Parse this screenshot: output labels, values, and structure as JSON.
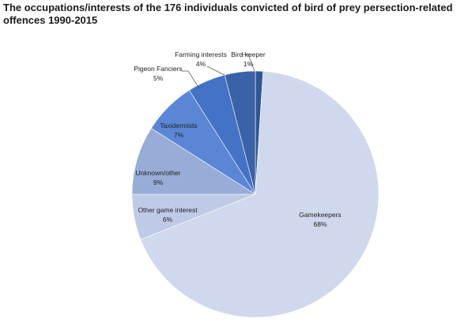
{
  "chart_data": {
    "type": "pie",
    "title": "The occupations/interests of the 176 individuals convicted of bird of prey persection-related offences 1990-2015",
    "slices": [
      {
        "label": "Bird keeper",
        "value": 1,
        "display": "1%",
        "color": "#2f5597"
      },
      {
        "label": "Gamekeepers",
        "value": 68,
        "display": "68%",
        "color": "#cfd8ec"
      },
      {
        "label": "Other game interest",
        "value": 6,
        "display": "6%",
        "color": "#bfcbe6"
      },
      {
        "label": "Unknown/other",
        "value": 9,
        "display": "9%",
        "color": "#98acd8"
      },
      {
        "label": "Taxidermists",
        "value": 7,
        "display": "7%",
        "color": "#5b86d6"
      },
      {
        "label": "Pigeon Fanciers",
        "value": 5,
        "display": "5%",
        "color": "#4472c4"
      },
      {
        "label": "Farming interests",
        "value": 4,
        "display": "4%",
        "color": "#3a62a8"
      }
    ],
    "start": "top",
    "direction": "clockwise",
    "legend": "none"
  }
}
